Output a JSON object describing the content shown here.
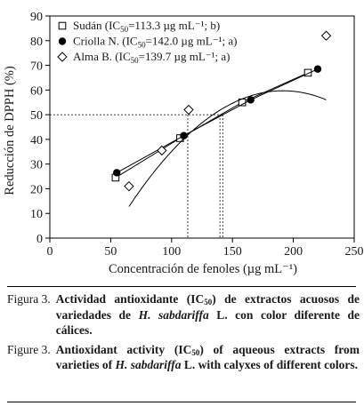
{
  "chart_data": {
    "type": "scatter",
    "xlabel": "Concentración de fenoles (µg mL⁻¹)",
    "ylabel": "Reducción de DPPH (%)",
    "xlim": [
      0,
      250
    ],
    "ylim": [
      0,
      90
    ],
    "xticks": [
      0,
      50,
      100,
      150,
      200,
      250
    ],
    "yticks": [
      0,
      10,
      20,
      30,
      40,
      50,
      60,
      70,
      80,
      90
    ],
    "grid": false,
    "legend_position": "top-left",
    "reference_line_y": 50,
    "series": [
      {
        "name": "Sudán (IC50=113.3 µg mL⁻¹; b)",
        "legend_prefix": "Sudán (IC",
        "legend_sub": "50",
        "legend_suffix": "=113.3 µg mL⁻¹; b)",
        "marker": "square",
        "x": [
          54,
          107,
          158,
          212
        ],
        "y": [
          24.5,
          40.5,
          55,
          67
        ],
        "ic50": 113.3
      },
      {
        "name": "Criolla N. (IC50=142.0 µg mL⁻¹; a)",
        "legend_prefix": "Criolla N. (IC",
        "legend_sub": "50",
        "legend_suffix": "=142.0 µg mL⁻¹; a)",
        "marker": "filled-circle",
        "x": [
          55,
          110,
          165,
          220
        ],
        "y": [
          26.5,
          41.5,
          56,
          68.5
        ],
        "ic50": 142.0
      },
      {
        "name": "Alma B. (IC50=139.7 µg mL⁻¹; a)",
        "legend_prefix": "Alma B. (IC",
        "legend_sub": "50",
        "legend_suffix": "=139.7 µg mL⁻¹; a)",
        "marker": "diamond",
        "x": [
          65,
          92,
          114,
          227
        ],
        "y": [
          21,
          35.5,
          52,
          82
        ],
        "ic50": 139.7
      }
    ]
  },
  "captions": [
    {
      "label": "Figura 3.",
      "t1": "Actividad antioxidante (IC",
      "sub": "50",
      "t2": ") de extractos acuosos de variedades de ",
      "italic": "H. sabdariffa",
      "t3": " L. con color diferente de cálices."
    },
    {
      "label": "Figure 3.",
      "t1": "Antioxidant activity (IC",
      "sub": "50",
      "t2": ") of aqueous extracts from varieties of ",
      "italic": "H. sabdariffa",
      "t3": " L. with calyxes of different colors."
    }
  ]
}
